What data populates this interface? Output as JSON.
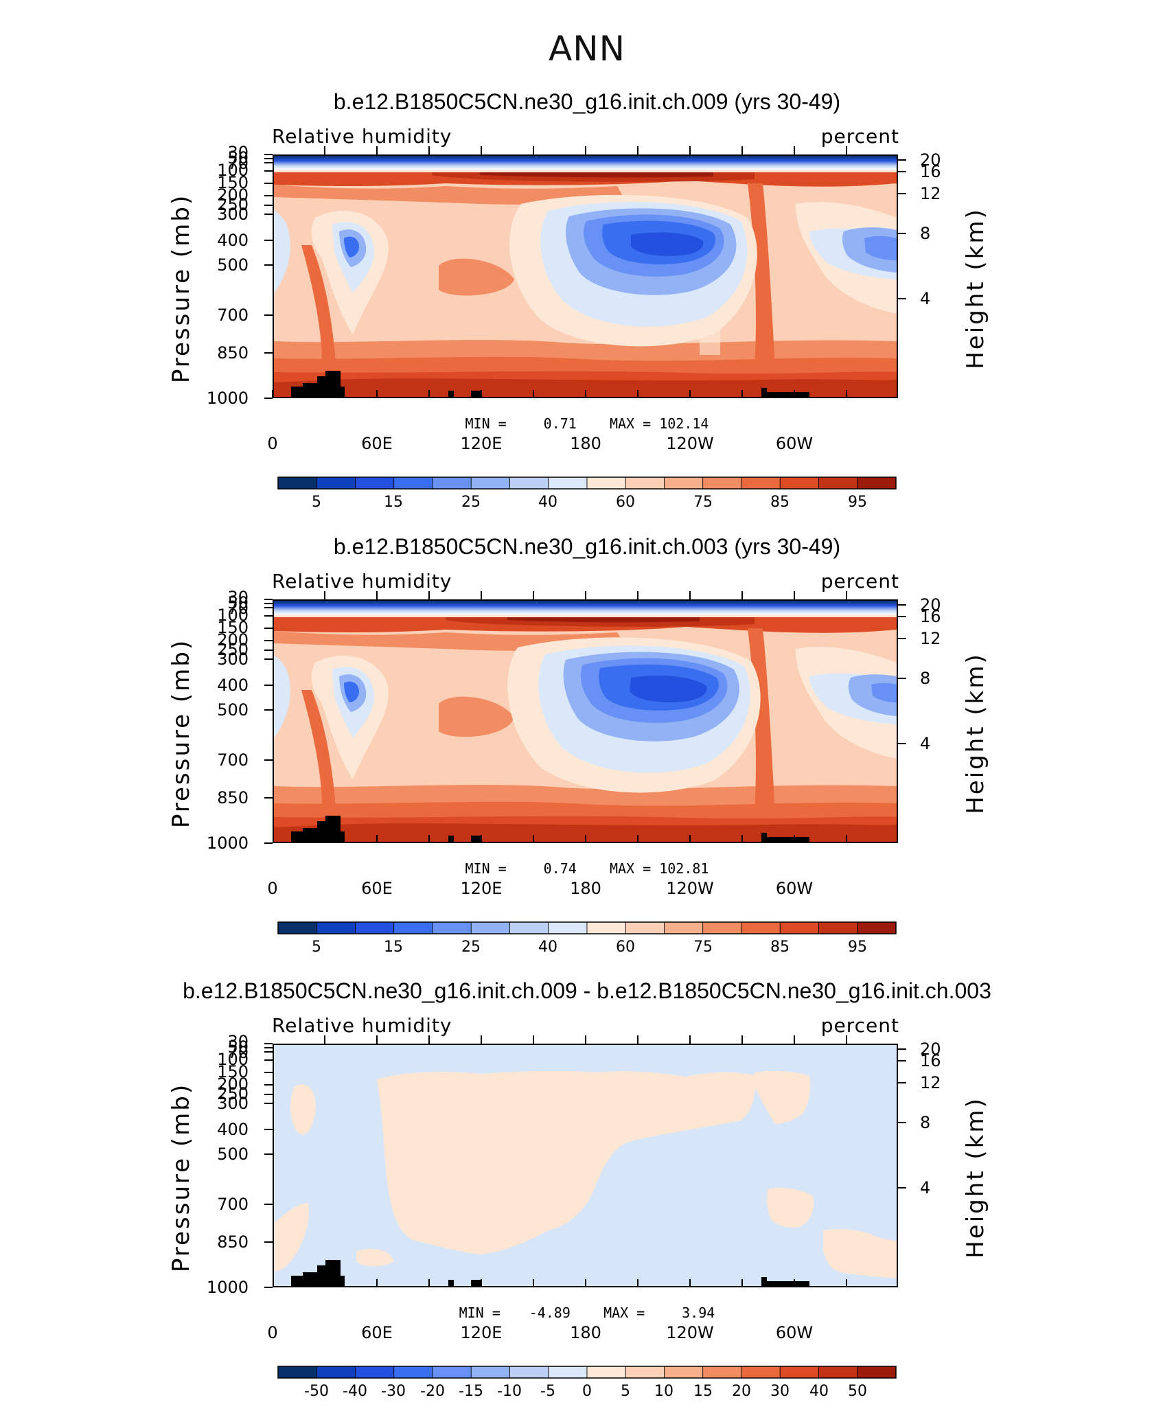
{
  "figure": {
    "title": "ANN"
  },
  "colors": {
    "blues": [
      "#08306b",
      "#0f3fbd",
      "#2450e0",
      "#3a6ef0",
      "#6891f5",
      "#93b1f5",
      "#bcd0f5",
      "#dbe8fa"
    ],
    "warms": [
      "#fde8d7",
      "#fbd0b7",
      "#f7b08c",
      "#f28c62",
      "#ea6a3e",
      "#dc4b23",
      "#c13314",
      "#9c1b0a",
      "#720e06"
    ],
    "diff_neg": "#d6e6f8",
    "diff_pos": "#fde6d4",
    "topography": "#000000"
  },
  "chart_data": [
    {
      "type": "contour",
      "title": "b.e12.B1850C5CN.ne30_g16.init.ch.009 (yrs 30-49)",
      "variable": "Relative humidity",
      "units": "percent",
      "ylabel": "Pressure (mb)",
      "ylabel_right": "Height (km)",
      "x_ticks": [
        "0",
        "60E",
        "120E",
        "180",
        "120W",
        "60W"
      ],
      "y_ticks": [
        "30",
        "50",
        "70",
        "100",
        "150",
        "200",
        "250",
        "300",
        "400",
        "500",
        "700",
        "850",
        "1000"
      ],
      "y_right_ticks": [
        "20",
        "16",
        "12",
        "8",
        "4"
      ],
      "min_label": "MIN =",
      "min_value": "0.71",
      "max_label": "MAX =",
      "max_value": "102.14",
      "colorbar_labels": [
        "5",
        "15",
        "25",
        "40",
        "60",
        "75",
        "85",
        "95"
      ],
      "colorbar_levels": [
        5,
        10,
        15,
        20,
        25,
        30,
        40,
        50,
        60,
        65,
        75,
        80,
        85,
        90,
        95
      ]
    },
    {
      "type": "contour",
      "title": "b.e12.B1850C5CN.ne30_g16.init.ch.003 (yrs 30-49)",
      "variable": "Relative humidity",
      "units": "percent",
      "ylabel": "Pressure (mb)",
      "ylabel_right": "Height (km)",
      "x_ticks": [
        "0",
        "60E",
        "120E",
        "180",
        "120W",
        "60W"
      ],
      "y_ticks": [
        "30",
        "50",
        "70",
        "100",
        "150",
        "200",
        "250",
        "300",
        "400",
        "500",
        "700",
        "850",
        "1000"
      ],
      "y_right_ticks": [
        "20",
        "16",
        "12",
        "8",
        "4"
      ],
      "min_label": "MIN =",
      "min_value": "0.74",
      "max_label": "MAX =",
      "max_value": "102.81",
      "colorbar_labels": [
        "5",
        "15",
        "25",
        "40",
        "60",
        "75",
        "85",
        "95"
      ],
      "colorbar_levels": [
        5,
        10,
        15,
        20,
        25,
        30,
        40,
        50,
        60,
        65,
        75,
        80,
        85,
        90,
        95
      ]
    },
    {
      "type": "contour",
      "title": "b.e12.B1850C5CN.ne30_g16.init.ch.009 - b.e12.B1850C5CN.ne30_g16.init.ch.003",
      "variable": "Relative humidity",
      "units": "percent",
      "ylabel": "Pressure (mb)",
      "ylabel_right": "Height (km)",
      "x_ticks": [
        "0",
        "60E",
        "120E",
        "180",
        "120W",
        "60W"
      ],
      "y_ticks": [
        "30",
        "50",
        "70",
        "100",
        "150",
        "200",
        "250",
        "300",
        "400",
        "500",
        "700",
        "850",
        "1000"
      ],
      "y_right_ticks": [
        "20",
        "16",
        "12",
        "8",
        "4"
      ],
      "min_label": "MIN =",
      "min_value": "-4.89",
      "max_label": "MAX =",
      "max_value": "3.94",
      "colorbar_labels": [
        "-50",
        "-40",
        "-30",
        "-20",
        "-15",
        "-10",
        "-5",
        "0",
        "5",
        "10",
        "15",
        "20",
        "30",
        "40",
        "50"
      ],
      "colorbar_levels": [
        -50,
        -40,
        -30,
        -20,
        -15,
        -10,
        -5,
        0,
        5,
        10,
        15,
        20,
        30,
        40,
        50
      ]
    }
  ]
}
